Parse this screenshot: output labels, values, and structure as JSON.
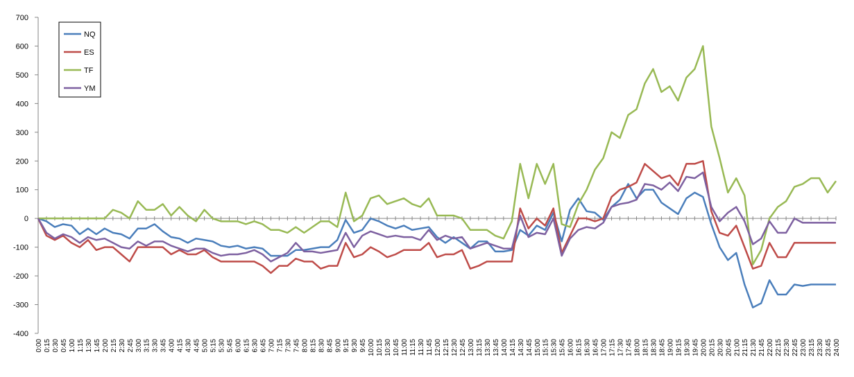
{
  "chart_data": {
    "type": "line",
    "categories": [
      "0:00",
      "0:15",
      "0:30",
      "0:45",
      "1:00",
      "1:15",
      "1:30",
      "1:45",
      "2:00",
      "2:15",
      "2:30",
      "2:45",
      "3:00",
      "3:15",
      "3:30",
      "3:45",
      "4:00",
      "4:15",
      "4:30",
      "4:45",
      "5:00",
      "5:15",
      "5:30",
      "5:45",
      "6:00",
      "6:15",
      "6:30",
      "6:45",
      "7:00",
      "7:15",
      "7:30",
      "7:45",
      "8:00",
      "8:15",
      "8:30",
      "8:45",
      "9:00",
      "9:15",
      "9:30",
      "9:45",
      "10:00",
      "10:15",
      "10:30",
      "10:45",
      "11:00",
      "11:15",
      "11:30",
      "11:45",
      "12:00",
      "12:15",
      "12:30",
      "12:45",
      "13:00",
      "13:15",
      "13:30",
      "13:45",
      "14:00",
      "14:15",
      "14:30",
      "14:45",
      "15:00",
      "15:15",
      "15:30",
      "15:45",
      "16:00",
      "16:15",
      "16:30",
      "16:45",
      "17:00",
      "17:15",
      "17:30",
      "17:45",
      "18:00",
      "18:15",
      "18:30",
      "18:45",
      "19:00",
      "19:15",
      "19:30",
      "19:45",
      "20:00",
      "20:15",
      "20:30",
      "20:45",
      "21:00",
      "21:15",
      "21:30",
      "21:45",
      "22:00",
      "22:15",
      "22:30",
      "22:45",
      "23:00",
      "23:15",
      "23:30",
      "23:45",
      "24:00"
    ],
    "series": [
      {
        "name": "NQ",
        "color": "#4a7ebb",
        "values": [
          0,
          -10,
          -30,
          -20,
          -25,
          -55,
          -35,
          -55,
          -35,
          -50,
          -55,
          -70,
          -35,
          -35,
          -20,
          -45,
          -65,
          -70,
          -85,
          -70,
          -75,
          -80,
          -95,
          -100,
          -95,
          -105,
          -100,
          -105,
          -130,
          -130,
          -130,
          -110,
          -110,
          -105,
          -100,
          -100,
          -75,
          -5,
          -50,
          -40,
          0,
          -10,
          -25,
          -35,
          -25,
          -40,
          -35,
          -30,
          -65,
          -85,
          -65,
          -85,
          -105,
          -80,
          -80,
          -115,
          -115,
          -110,
          -40,
          -60,
          -25,
          -40,
          20,
          -80,
          30,
          70,
          25,
          20,
          -5,
          40,
          65,
          120,
          70,
          100,
          100,
          55,
          35,
          15,
          70,
          90,
          75,
          -20,
          -100,
          -145,
          -120,
          -230,
          -310,
          -295,
          -215,
          -265,
          -265,
          -230,
          -235,
          -230,
          -230,
          -230,
          -230
        ]
      },
      {
        "name": "ES",
        "color": "#be4b48",
        "values": [
          0,
          -60,
          -75,
          -60,
          -85,
          -100,
          -75,
          -110,
          -100,
          -100,
          -125,
          -150,
          -100,
          -100,
          -100,
          -100,
          -125,
          -110,
          -125,
          -125,
          -110,
          -135,
          -150,
          -150,
          -150,
          -150,
          -150,
          -165,
          -190,
          -165,
          -165,
          -140,
          -150,
          -150,
          -175,
          -165,
          -165,
          -85,
          -135,
          -125,
          -100,
          -115,
          -135,
          -125,
          -110,
          -110,
          -110,
          -85,
          -135,
          -125,
          -125,
          -110,
          -175,
          -165,
          -150,
          -150,
          -150,
          -150,
          35,
          -35,
          0,
          -25,
          35,
          -120,
          -60,
          0,
          0,
          -10,
          0,
          75,
          100,
          110,
          125,
          190,
          165,
          140,
          150,
          115,
          190,
          190,
          200,
          25,
          -50,
          -60,
          -25,
          -100,
          -175,
          -165,
          -85,
          -135,
          -135,
          -85,
          -85,
          -85,
          -85,
          -85,
          -85
        ]
      },
      {
        "name": "TF",
        "color": "#98b954",
        "values": [
          0,
          0,
          0,
          0,
          0,
          0,
          0,
          0,
          0,
          30,
          20,
          0,
          60,
          30,
          30,
          50,
          10,
          40,
          10,
          -10,
          30,
          0,
          -10,
          -10,
          -10,
          -20,
          -10,
          -20,
          -40,
          -40,
          -50,
          -30,
          -50,
          -30,
          -10,
          -10,
          -30,
          90,
          -10,
          10,
          70,
          80,
          50,
          60,
          70,
          50,
          40,
          70,
          10,
          10,
          10,
          0,
          -40,
          -40,
          -40,
          -60,
          -70,
          -10,
          190,
          70,
          190,
          120,
          190,
          -20,
          -30,
          50,
          100,
          170,
          210,
          300,
          280,
          360,
          380,
          470,
          520,
          440,
          460,
          410,
          490,
          520,
          600,
          320,
          210,
          90,
          140,
          80,
          -160,
          -110,
          0,
          40,
          60,
          110,
          120,
          140,
          140,
          90,
          130
        ]
      },
      {
        "name": "YM",
        "color": "#7d60a0",
        "values": [
          0,
          -50,
          -70,
          -55,
          -65,
          -85,
          -65,
          -75,
          -70,
          -85,
          -100,
          -105,
          -80,
          -95,
          -80,
          -80,
          -95,
          -105,
          -115,
          -105,
          -105,
          -120,
          -130,
          -125,
          -125,
          -120,
          -110,
          -125,
          -150,
          -135,
          -120,
          -85,
          -115,
          -115,
          -120,
          -115,
          -110,
          -50,
          -100,
          -60,
          -45,
          -55,
          -65,
          -60,
          -65,
          -65,
          -75,
          -40,
          -75,
          -60,
          -70,
          -65,
          -105,
          -95,
          -85,
          -95,
          -105,
          -105,
          10,
          -65,
          -50,
          -55,
          0,
          -130,
          -70,
          -40,
          -30,
          -35,
          -15,
          40,
          50,
          55,
          65,
          120,
          115,
          100,
          125,
          95,
          145,
          140,
          160,
          40,
          -10,
          20,
          40,
          -10,
          -90,
          -70,
          -10,
          -50,
          -50,
          0,
          -15,
          -15,
          -15,
          -15,
          -15
        ]
      }
    ],
    "ylim": [
      -400,
      700
    ],
    "yticks": [
      -400,
      -300,
      -200,
      -100,
      0,
      100,
      200,
      300,
      400,
      500,
      600,
      700
    ],
    "legend": "upper-left"
  }
}
